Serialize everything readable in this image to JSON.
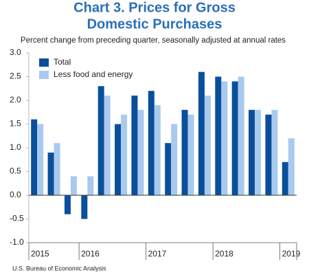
{
  "chart_data": {
    "type": "bar",
    "title": [
      "Chart 3. Prices for Gross",
      "Domestic Purchases"
    ],
    "subtitle": "Percent change from preceding quarter, seasonally adjusted at annual rates",
    "source": "U.S. Bureau of Economic Analysis",
    "categories": [
      "2015",
      null,
      null,
      "2016",
      null,
      null,
      null,
      "2017",
      null,
      null,
      null,
      "2018",
      null,
      null,
      null,
      "2019"
    ],
    "series": [
      {
        "name": "Total",
        "color": "#0a4f9c",
        "values": [
          1.6,
          0.9,
          -0.4,
          -0.5,
          2.3,
          1.5,
          2.1,
          2.2,
          1.1,
          1.8,
          2.6,
          2.5,
          2.4,
          1.8,
          1.7,
          0.7
        ]
      },
      {
        "name": "Less food and energy",
        "color": "#a9caef",
        "values": [
          1.5,
          1.1,
          0.4,
          0.4,
          2.1,
          1.7,
          1.8,
          1.9,
          1.5,
          1.7,
          2.1,
          2.4,
          2.5,
          1.8,
          1.8,
          1.2
        ]
      }
    ],
    "ylim": [
      -1,
      3
    ],
    "yticks": [
      {
        "value": -1,
        "label": "-1.0"
      },
      -0.5,
      {
        "value": 0,
        "label": "0.0"
      },
      0.5,
      {
        "value": 1,
        "label": "1.0"
      },
      1.5,
      {
        "value": 2,
        "label": "2.0"
      },
      2.5,
      {
        "value": 3,
        "label": "3.0"
      }
    ],
    "legend": "upper-left"
  }
}
